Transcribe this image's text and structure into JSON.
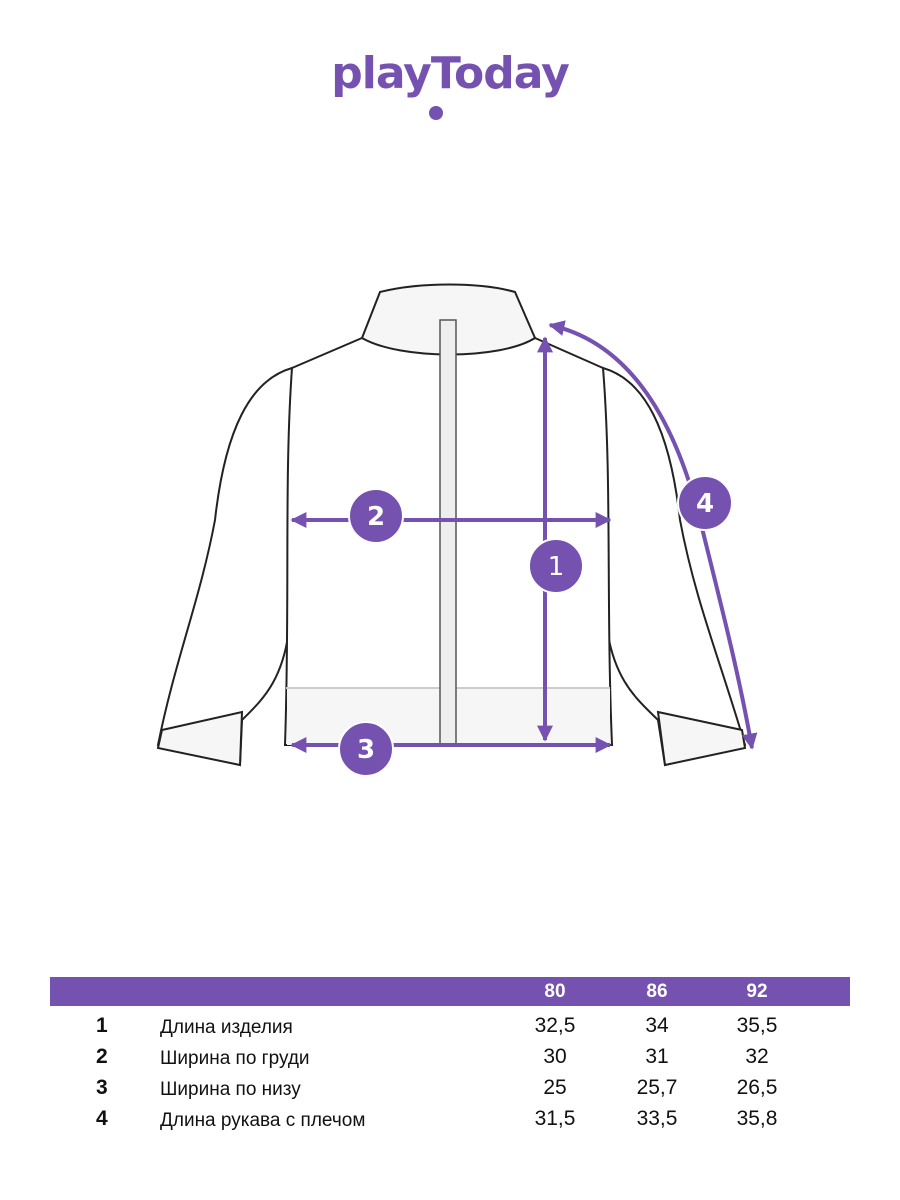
{
  "brand": {
    "logo_text": "playToday",
    "color": "#7552b0"
  },
  "diagram": {
    "markers": [
      "1",
      "2",
      "3",
      "4"
    ]
  },
  "table": {
    "sizes": [
      "80",
      "86",
      "92"
    ],
    "rows": [
      {
        "num": "1",
        "label": "Длина изделия",
        "values": [
          "32,5",
          "34",
          "35,5"
        ]
      },
      {
        "num": "2",
        "label": "Ширина по груди",
        "values": [
          "30",
          "31",
          "32"
        ]
      },
      {
        "num": "3",
        "label": "Ширина по низу",
        "values": [
          "25",
          "25,7",
          "26,5"
        ]
      },
      {
        "num": "4",
        "label": "Длина рукава с плечом",
        "values": [
          "31,5",
          "33,5",
          "35,8"
        ]
      }
    ]
  }
}
